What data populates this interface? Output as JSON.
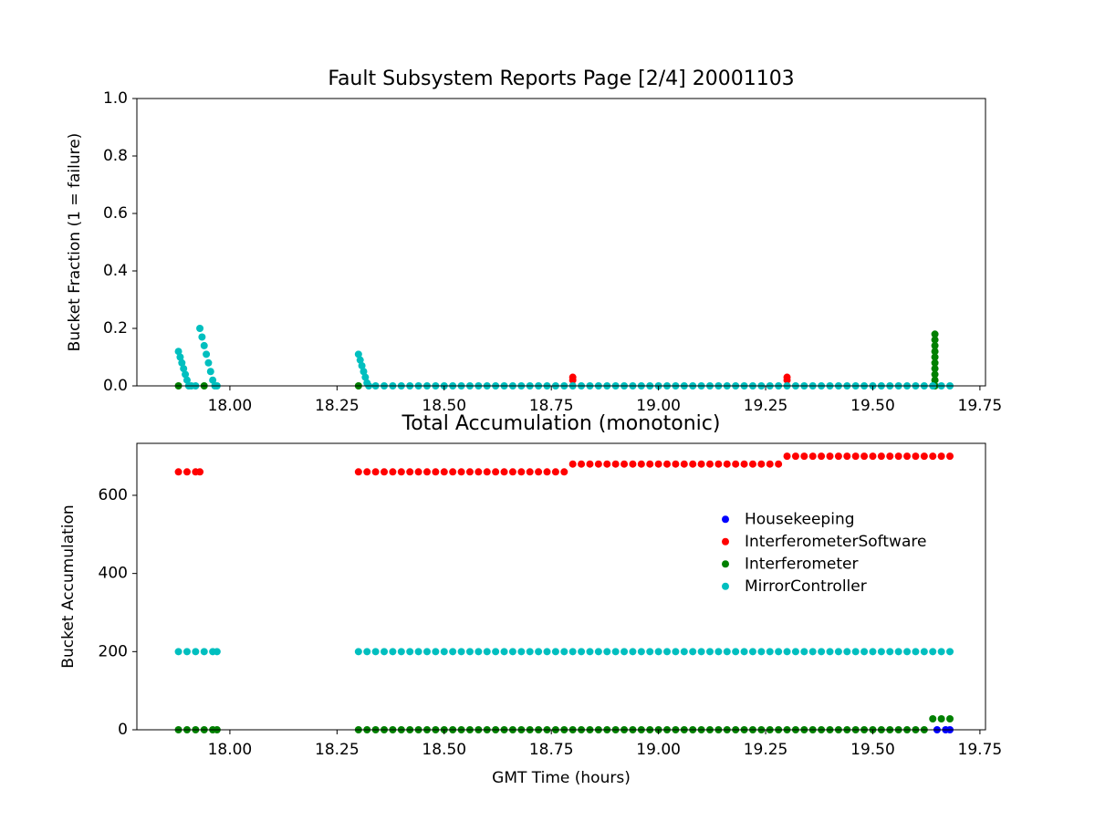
{
  "chart_data": [
    {
      "type": "scatter",
      "title": "Fault Subsystem Reports Page [2/4] 20001103",
      "y_label": "Bucket Fraction (1 = failure)",
      "xlim": [
        17.783,
        19.763
      ],
      "ylim": [
        0,
        1
      ],
      "xticks": [
        {
          "value": 18,
          "label": "18.00"
        },
        18.25,
        {
          "value": 18.5,
          "label": "18.50"
        },
        18.75,
        {
          "value": 19,
          "label": "19.00"
        },
        19.25,
        {
          "value": 19.5,
          "label": "19.50"
        },
        19.75
      ],
      "yticks": [
        {
          "value": 0,
          "label": "0.0"
        },
        0.2,
        0.4,
        0.6,
        0.8,
        {
          "value": 1,
          "label": "1.0"
        }
      ],
      "series": [
        {
          "name": "InterferometerSoftware",
          "color": "#ff0000",
          "x": [
            18.8,
            18.8,
            19.3,
            19.3
          ],
          "values": [
            0.03,
            0.02,
            0.03,
            0.02
          ]
        },
        {
          "name": "Interferometer",
          "color": "#008000",
          "x": [
            17.88,
            17.94,
            18.3,
            19.645,
            19.645,
            19.645,
            19.645,
            19.645,
            19.645,
            19.645,
            19.645,
            19.645,
            19.645
          ],
          "values": [
            0,
            0,
            0,
            0,
            0.02,
            0.04,
            0.06,
            0.08,
            0.1,
            0.12,
            0.14,
            0.16,
            0.18
          ]
        },
        {
          "name": "MirrorController",
          "color": "#00bfbf",
          "x": [
            17.88,
            17.884,
            17.888,
            17.892,
            17.896,
            17.9,
            17.904,
            17.91,
            17.92,
            17.93,
            17.935,
            17.94,
            17.945,
            17.95,
            17.955,
            17.96,
            17.965,
            17.97,
            18.3,
            18.304,
            18.308,
            18.312,
            18.316,
            18.32,
            18.324,
            18.34,
            18.36,
            18.38,
            18.4,
            18.42,
            18.44,
            18.46,
            18.48,
            18.5,
            18.52,
            18.54,
            18.56,
            18.58,
            18.6,
            18.62,
            18.64,
            18.66,
            18.68,
            18.7,
            18.72,
            18.74,
            18.76,
            18.78,
            18.8,
            18.82,
            18.84,
            18.86,
            18.88,
            18.9,
            18.92,
            18.94,
            18.96,
            18.98,
            19,
            19.02,
            19.04,
            19.06,
            19.08,
            19.1,
            19.12,
            19.14,
            19.16,
            19.18,
            19.2,
            19.22,
            19.24,
            19.26,
            19.28,
            19.3,
            19.32,
            19.34,
            19.36,
            19.38,
            19.4,
            19.42,
            19.44,
            19.46,
            19.48,
            19.5,
            19.52,
            19.54,
            19.56,
            19.58,
            19.6,
            19.62,
            19.64,
            19.66,
            19.68
          ],
          "values": [
            0.12,
            0.1,
            0.08,
            0.06,
            0.04,
            0.02,
            0,
            0,
            0,
            0.2,
            0.17,
            0.14,
            0.11,
            0.08,
            0.05,
            0.02,
            0,
            0,
            0.11,
            0.09,
            0.07,
            0.05,
            0.03,
            0.01,
            0,
            0,
            0,
            0,
            0,
            0,
            0,
            0,
            0,
            0,
            0,
            0,
            0,
            0,
            0,
            0,
            0,
            0,
            0,
            0,
            0,
            0,
            0,
            0,
            0,
            0,
            0,
            0,
            0,
            0,
            0,
            0,
            0,
            0,
            0,
            0,
            0,
            0,
            0,
            0,
            0,
            0,
            0,
            0,
            0,
            0,
            0,
            0,
            0,
            0,
            0,
            0,
            0,
            0,
            0,
            0,
            0,
            0,
            0,
            0,
            0,
            0,
            0,
            0,
            0,
            0,
            0,
            0,
            0
          ]
        }
      ]
    },
    {
      "type": "scatter",
      "title": "Total Accumulation (monotonic)",
      "x_label": "GMT Time (hours)",
      "y_label": "Bucket Accumulation",
      "xlim": [
        17.783,
        19.763
      ],
      "ylim": [
        0,
        733
      ],
      "xticks": [
        {
          "value": 18,
          "label": "18.00"
        },
        18.25,
        {
          "value": 18.5,
          "label": "18.50"
        },
        18.75,
        {
          "value": 19,
          "label": "19.00"
        },
        19.25,
        {
          "value": 19.5,
          "label": "19.50"
        },
        19.75
      ],
      "yticks": [
        0,
        200,
        400,
        600
      ],
      "legend": "center right",
      "series": [
        {
          "name": "Housekeeping",
          "color": "#0000ff",
          "x": [
            19.65,
            19.67,
            19.68
          ],
          "values": [
            0,
            0,
            0
          ]
        },
        {
          "name": "InterferometerSoftware",
          "color": "#ff0000",
          "x": [
            17.88,
            17.9,
            17.92,
            17.93,
            18.3,
            18.32,
            18.34,
            18.36,
            18.38,
            18.4,
            18.42,
            18.44,
            18.46,
            18.48,
            18.5,
            18.52,
            18.54,
            18.56,
            18.58,
            18.6,
            18.62,
            18.64,
            18.66,
            18.68,
            18.7,
            18.72,
            18.74,
            18.76,
            18.78,
            18.8,
            18.82,
            18.84,
            18.86,
            18.88,
            18.9,
            18.92,
            18.94,
            18.96,
            18.98,
            19,
            19.02,
            19.04,
            19.06,
            19.08,
            19.1,
            19.12,
            19.14,
            19.16,
            19.18,
            19.2,
            19.22,
            19.24,
            19.26,
            19.28,
            19.3,
            19.32,
            19.34,
            19.36,
            19.38,
            19.4,
            19.42,
            19.44,
            19.46,
            19.48,
            19.5,
            19.52,
            19.54,
            19.56,
            19.58,
            19.6,
            19.62,
            19.64,
            19.66,
            19.68
          ],
          "values": [
            660,
            660,
            660,
            660,
            660,
            660,
            660,
            660,
            660,
            660,
            660,
            660,
            660,
            660,
            660,
            660,
            660,
            660,
            660,
            660,
            660,
            660,
            660,
            660,
            660,
            660,
            660,
            660,
            660,
            680,
            680,
            680,
            680,
            680,
            680,
            680,
            680,
            680,
            680,
            680,
            680,
            680,
            680,
            680,
            680,
            680,
            680,
            680,
            680,
            680,
            680,
            680,
            680,
            680,
            700,
            700,
            700,
            700,
            700,
            700,
            700,
            700,
            700,
            700,
            700,
            700,
            700,
            700,
            700,
            700,
            700,
            700,
            700,
            700
          ]
        },
        {
          "name": "Interferometer",
          "color": "#008000",
          "x": [
            17.88,
            17.9,
            17.92,
            17.94,
            17.96,
            17.97,
            18.3,
            18.32,
            18.34,
            18.36,
            18.38,
            18.4,
            18.42,
            18.44,
            18.46,
            18.48,
            18.5,
            18.52,
            18.54,
            18.56,
            18.58,
            18.6,
            18.62,
            18.64,
            18.66,
            18.68,
            18.7,
            18.72,
            18.74,
            18.76,
            18.78,
            18.8,
            18.82,
            18.84,
            18.86,
            18.88,
            18.9,
            18.92,
            18.94,
            18.96,
            18.98,
            19,
            19.02,
            19.04,
            19.06,
            19.08,
            19.1,
            19.12,
            19.14,
            19.16,
            19.18,
            19.2,
            19.22,
            19.24,
            19.26,
            19.28,
            19.3,
            19.32,
            19.34,
            19.36,
            19.38,
            19.4,
            19.42,
            19.44,
            19.46,
            19.48,
            19.5,
            19.52,
            19.54,
            19.56,
            19.58,
            19.6,
            19.62,
            19.64,
            19.66,
            19.68
          ],
          "values": [
            0,
            0,
            0,
            0,
            0,
            0,
            0,
            0,
            0,
            0,
            0,
            0,
            0,
            0,
            0,
            0,
            0,
            0,
            0,
            0,
            0,
            0,
            0,
            0,
            0,
            0,
            0,
            0,
            0,
            0,
            0,
            0,
            0,
            0,
            0,
            0,
            0,
            0,
            0,
            0,
            0,
            0,
            0,
            0,
            0,
            0,
            0,
            0,
            0,
            0,
            0,
            0,
            0,
            0,
            0,
            0,
            0,
            0,
            0,
            0,
            0,
            0,
            0,
            0,
            0,
            0,
            0,
            0,
            0,
            0,
            0,
            0,
            0,
            28,
            28,
            28
          ]
        },
        {
          "name": "MirrorController",
          "color": "#00bfbf",
          "x": [
            17.88,
            17.9,
            17.92,
            17.94,
            17.96,
            17.97,
            18.3,
            18.32,
            18.34,
            18.36,
            18.38,
            18.4,
            18.42,
            18.44,
            18.46,
            18.48,
            18.5,
            18.52,
            18.54,
            18.56,
            18.58,
            18.6,
            18.62,
            18.64,
            18.66,
            18.68,
            18.7,
            18.72,
            18.74,
            18.76,
            18.78,
            18.8,
            18.82,
            18.84,
            18.86,
            18.88,
            18.9,
            18.92,
            18.94,
            18.96,
            18.98,
            19,
            19.02,
            19.04,
            19.06,
            19.08,
            19.1,
            19.12,
            19.14,
            19.16,
            19.18,
            19.2,
            19.22,
            19.24,
            19.26,
            19.28,
            19.3,
            19.32,
            19.34,
            19.36,
            19.38,
            19.4,
            19.42,
            19.44,
            19.46,
            19.48,
            19.5,
            19.52,
            19.54,
            19.56,
            19.58,
            19.6,
            19.62,
            19.64,
            19.66,
            19.68
          ],
          "values": [
            200,
            200,
            200,
            200,
            200,
            200,
            200,
            200,
            200,
            200,
            200,
            200,
            200,
            200,
            200,
            200,
            200,
            200,
            200,
            200,
            200,
            200,
            200,
            200,
            200,
            200,
            200,
            200,
            200,
            200,
            200,
            200,
            200,
            200,
            200,
            200,
            200,
            200,
            200,
            200,
            200,
            200,
            200,
            200,
            200,
            200,
            200,
            200,
            200,
            200,
            200,
            200,
            200,
            200,
            200,
            200,
            200,
            200,
            200,
            200,
            200,
            200,
            200,
            200,
            200,
            200,
            200,
            200,
            200,
            200,
            200,
            200,
            200,
            200,
            200,
            200
          ]
        }
      ]
    }
  ]
}
